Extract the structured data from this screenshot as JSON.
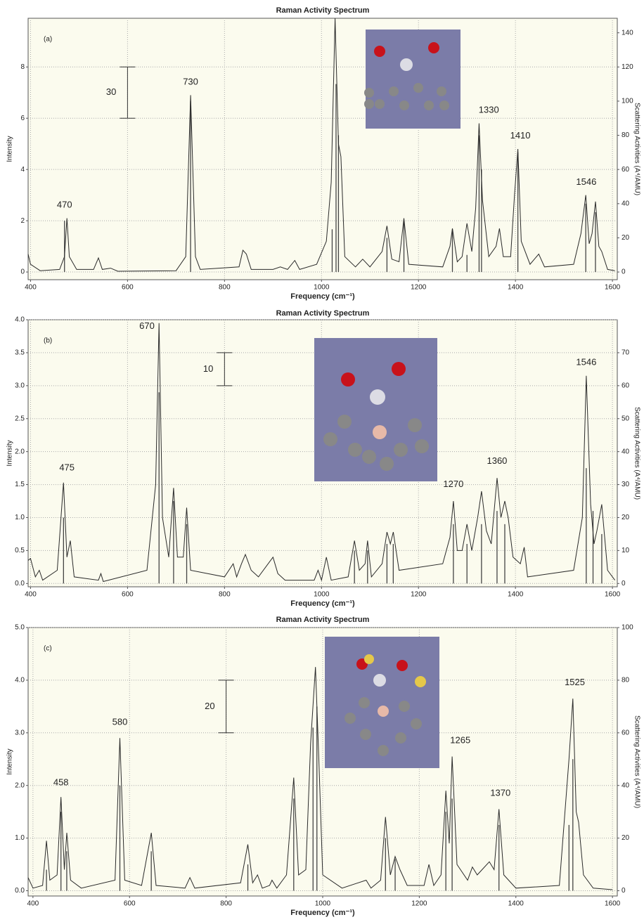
{
  "chart_data": [
    {
      "type": "line",
      "title": "Raman Activity Spectrum",
      "panel_label": "(a)",
      "x_label": "Frequency (cm⁻¹)",
      "y_label": "Intensity",
      "y2_label": "Scattering Activities (A⁴/AMU)",
      "color": "#2a2a2a",
      "grid": true,
      "xlim": [
        395,
        1610
      ],
      "xticks": [
        400,
        600,
        800,
        1000,
        1200,
        1400,
        1600
      ],
      "ylim": [
        -0.3,
        9.9
      ],
      "yticks": [
        0,
        2,
        4,
        6,
        8
      ],
      "y2lim": [
        -4.5,
        148.5
      ],
      "y2ticks": [
        0,
        20,
        40,
        60,
        80,
        100,
        120,
        140
      ],
      "x": [
        395,
        400,
        420,
        460,
        470,
        475,
        480,
        495,
        530,
        540,
        548,
        565,
        580,
        700,
        720,
        730,
        740,
        750,
        830,
        838,
        845,
        855,
        870,
        900,
        915,
        930,
        945,
        955,
        990,
        1010,
        1020,
        1028,
        1035,
        1040,
        1048,
        1070,
        1085,
        1100,
        1125,
        1135,
        1145,
        1160,
        1170,
        1180,
        1250,
        1265,
        1270,
        1280,
        1290,
        1300,
        1310,
        1318,
        1325,
        1332,
        1345,
        1360,
        1367,
        1375,
        1390,
        1398,
        1405,
        1412,
        1430,
        1448,
        1460,
        1520,
        1535,
        1545,
        1552,
        1558,
        1565,
        1572,
        1578,
        1590,
        1605
      ],
      "values": [
        0.7,
        0.3,
        0.05,
        0.1,
        0.6,
        2.1,
        0.6,
        0.1,
        0.1,
        0.55,
        0.1,
        0.15,
        0.03,
        0.05,
        0.6,
        6.9,
        0.6,
        0.1,
        0.2,
        0.85,
        0.7,
        0.1,
        0.1,
        0.1,
        0.2,
        0.1,
        0.45,
        0.1,
        0.3,
        1.2,
        3.5,
        9.9,
        5,
        4.5,
        0.6,
        0.2,
        0.5,
        0.2,
        0.8,
        1.8,
        0.5,
        0.4,
        2.1,
        0.3,
        0.2,
        1.0,
        1.7,
        0.4,
        0.6,
        1.9,
        0.8,
        2.5,
        5.8,
        2.8,
        0.6,
        1.0,
        1.7,
        0.6,
        0.6,
        3,
        4.8,
        1.2,
        0.3,
        0.7,
        0.2,
        0.3,
        1.5,
        3.0,
        1.1,
        1.5,
        2.75,
        1.0,
        0.8,
        0.1,
        0.05
      ],
      "sticks": {
        "axis": "y2",
        "x": [
          470,
          730,
          1022,
          1030,
          1035,
          1135,
          1170,
          1270,
          1300,
          1325,
          1330,
          1405,
          1545,
          1565
        ],
        "values": [
          30,
          100,
          25,
          110,
          80,
          20,
          30,
          25,
          10,
          80,
          60,
          70,
          40,
          35
        ]
      },
      "annotations": [
        {
          "text": "470",
          "x": 470,
          "y": 2.6
        },
        {
          "text": "730",
          "x": 730,
          "y": 7.4
        },
        {
          "text": "1330",
          "x": 1345,
          "y": 6.3
        },
        {
          "text": "1410",
          "x": 1410,
          "y": 5.3
        },
        {
          "text": "1546",
          "x": 1546,
          "y": 3.5
        }
      ],
      "scale_bar": {
        "label": "30",
        "x": 600,
        "y2": [
          90,
          120
        ]
      }
    },
    {
      "type": "line",
      "title": "Raman Activity Spectrum",
      "panel_label": "(b)",
      "x_label": "Frequency (cm⁻¹)",
      "y_label": "Intensity",
      "y2_label": "Scattering Activities (A⁴/AMU)",
      "color": "#2a2a2a",
      "grid": true,
      "xlim": [
        395,
        1610
      ],
      "xticks": [
        400,
        600,
        800,
        1000,
        1200,
        1400,
        1600
      ],
      "ylim": [
        -0.05,
        4.0
      ],
      "yticks": [
        {
          "value": 0,
          "label": "0.0"
        },
        {
          "value": 0.5,
          "label": "0.5"
        },
        {
          "value": 1,
          "label": "1.0"
        },
        {
          "value": 1.5,
          "label": "1.5"
        },
        {
          "value": 2,
          "label": "2.0"
        },
        {
          "value": 2.5,
          "label": "2.5"
        },
        {
          "value": 3,
          "label": "3.0"
        },
        {
          "value": 3.5,
          "label": "3.5"
        },
        {
          "value": 4,
          "label": "4.0"
        }
      ],
      "y2lim": [
        -1,
        80
      ],
      "y2ticks": [
        0,
        10,
        20,
        30,
        40,
        50,
        60,
        70
      ],
      "x": [
        395,
        400,
        410,
        418,
        425,
        455,
        468,
        475,
        482,
        490,
        540,
        545,
        550,
        640,
        658,
        665,
        672,
        685,
        695,
        703,
        715,
        722,
        730,
        800,
        818,
        825,
        835,
        843,
        855,
        870,
        890,
        900,
        910,
        925,
        985,
        993,
        1000,
        1010,
        1020,
        1055,
        1068,
        1078,
        1090,
        1095,
        1103,
        1125,
        1135,
        1142,
        1148,
        1160,
        1250,
        1265,
        1272,
        1280,
        1290,
        1300,
        1310,
        1322,
        1330,
        1340,
        1350,
        1362,
        1370,
        1378,
        1385,
        1395,
        1410,
        1418,
        1425,
        1520,
        1538,
        1546,
        1555,
        1562,
        1568,
        1578,
        1590,
        1605
      ],
      "values": [
        0.35,
        0.38,
        0.1,
        0.2,
        0.05,
        0.2,
        1.53,
        0.4,
        0.65,
        0.1,
        0.05,
        0.15,
        0.03,
        0.2,
        1.5,
        3.95,
        1.0,
        0.4,
        1.45,
        0.4,
        0.4,
        1.15,
        0.2,
        0.1,
        0.3,
        0.1,
        0.3,
        0.44,
        0.2,
        0.1,
        0.3,
        0.4,
        0.15,
        0.05,
        0.05,
        0.2,
        0.05,
        0.4,
        0.05,
        0.1,
        0.65,
        0.2,
        0.3,
        0.65,
        0.1,
        0.3,
        0.78,
        0.6,
        0.78,
        0.2,
        0.3,
        0.7,
        1.25,
        0.5,
        0.5,
        0.9,
        0.5,
        1.0,
        1.4,
        0.8,
        0.6,
        1.6,
        1.0,
        1.25,
        1.0,
        0.4,
        0.3,
        0.55,
        0.1,
        0.2,
        1.0,
        3.15,
        1.2,
        0.6,
        0.8,
        1.2,
        0.2,
        0.05
      ],
      "sticks": {
        "axis": "y2",
        "x": [
          468,
          665,
          695,
          722,
          1068,
          1095,
          1135,
          1148,
          1272,
          1300,
          1330,
          1362,
          1378,
          1546,
          1560,
          1578
        ],
        "values": [
          20,
          58,
          25,
          18,
          10,
          10,
          12,
          12,
          18,
          12,
          18,
          22,
          18,
          35,
          22,
          15
        ]
      },
      "annotations": [
        {
          "text": "475",
          "x": 475,
          "y": 1.75
        },
        {
          "text": "670",
          "x": 640,
          "y": 3.9
        },
        {
          "text": "1270",
          "x": 1272,
          "y": 1.5
        },
        {
          "text": "1360",
          "x": 1362,
          "y": 1.85
        },
        {
          "text": "1546",
          "x": 1546,
          "y": 3.35
        }
      ],
      "scale_bar": {
        "label": "10",
        "x": 800,
        "y2": [
          60,
          70
        ]
      }
    },
    {
      "type": "line",
      "title": "Raman Activity Spectrum",
      "panel_label": "(c)",
      "x_label": "Frequency (cm⁻¹)",
      "y_label": "Intensity",
      "y2_label": "Scattering Activities (A⁴/AMU)",
      "color": "#2a2a2a",
      "grid": true,
      "xlim": [
        390,
        1610
      ],
      "xticks": [
        400,
        600,
        800,
        1000,
        1200,
        1400,
        1600
      ],
      "ylim": [
        -0.1,
        5.0
      ],
      "yticks": [
        {
          "value": 0,
          "label": "0.0"
        },
        {
          "value": 1,
          "label": "1.0"
        },
        {
          "value": 2,
          "label": "2.0"
        },
        {
          "value": 3,
          "label": "3.0"
        },
        {
          "value": 4,
          "label": "4.0"
        },
        {
          "value": 5,
          "label": "5.0"
        }
      ],
      "y2lim": [
        -2,
        100
      ],
      "y2ticks": [
        0,
        20,
        40,
        60,
        80,
        100
      ],
      "x": [
        390,
        400,
        420,
        428,
        435,
        450,
        458,
        465,
        470,
        478,
        500,
        570,
        580,
        590,
        625,
        645,
        655,
        715,
        725,
        735,
        830,
        845,
        855,
        865,
        875,
        890,
        895,
        905,
        925,
        940,
        950,
        965,
        975,
        985,
        992,
        1000,
        1040,
        1090,
        1100,
        1120,
        1130,
        1140,
        1150,
        1160,
        1175,
        1210,
        1220,
        1230,
        1245,
        1255,
        1262,
        1268,
        1278,
        1300,
        1310,
        1320,
        1330,
        1345,
        1355,
        1365,
        1375,
        1400,
        1490,
        1510,
        1518,
        1525,
        1530,
        1540,
        1560,
        1600
      ],
      "values": [
        0.25,
        0.05,
        0.1,
        0.95,
        0.2,
        0.3,
        1.78,
        0.4,
        1.1,
        0.2,
        0.05,
        0.2,
        2.9,
        0.2,
        0.1,
        1.1,
        0.1,
        0.05,
        0.25,
        0.05,
        0.15,
        0.88,
        0.15,
        0.3,
        0.05,
        0.1,
        0.2,
        0.05,
        0.3,
        2.15,
        0.3,
        0.4,
        2.8,
        4.25,
        2.5,
        0.3,
        0.05,
        0.2,
        0.05,
        0.2,
        1.4,
        0.3,
        0.65,
        0.4,
        0.1,
        0.1,
        0.5,
        0.1,
        0.3,
        1.9,
        0.9,
        2.55,
        0.5,
        0.2,
        0.45,
        0.3,
        0.4,
        0.55,
        0.4,
        1.55,
        0.3,
        0.05,
        0.1,
        2.5,
        3.65,
        1.5,
        1.3,
        0.3,
        0.05,
        0.02
      ],
      "sticks": {
        "axis": "y2",
        "x": [
          428,
          458,
          470,
          580,
          645,
          845,
          940,
          980,
          988,
          1130,
          1150,
          1255,
          1268,
          1365,
          1510,
          1518
        ],
        "values": [
          8,
          30,
          15,
          40,
          15,
          10,
          35,
          62,
          70,
          20,
          12,
          30,
          35,
          25,
          25,
          50
        ]
      },
      "annotations": [
        {
          "text": "458",
          "x": 458,
          "y": 2.05
        },
        {
          "text": "580",
          "x": 580,
          "y": 3.2
        },
        {
          "text": "1265",
          "x": 1285,
          "y": 2.85
        },
        {
          "text": "1370",
          "x": 1368,
          "y": 1.85
        },
        {
          "text": "1525",
          "x": 1522,
          "y": 3.95
        }
      ],
      "scale_bar": {
        "label": "20",
        "x": 800,
        "y2": [
          60,
          80
        ]
      }
    }
  ]
}
